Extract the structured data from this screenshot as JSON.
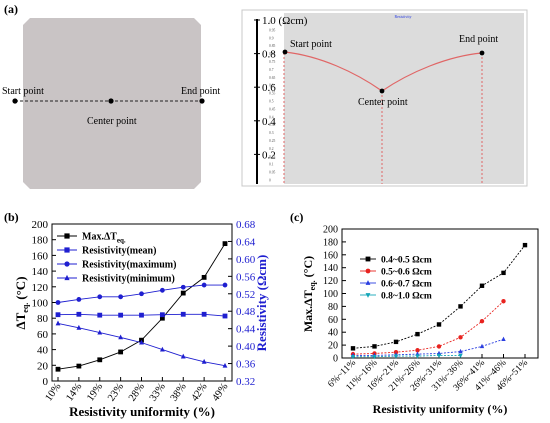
{
  "panel_a": {
    "label": "(a)",
    "left": {
      "start_label": "Start point",
      "center_label": "Center point",
      "end_label": "End point"
    },
    "right": {
      "header": "Resistivity",
      "y_ticks": [
        "1.0 (Ωcm)",
        "0.8",
        "0.6",
        "0.4",
        "0.2"
      ],
      "small_ticks": [
        "1",
        "0.95",
        "0.9",
        "0.85",
        "0.8",
        "0.75",
        "0.7",
        "0.65",
        "0.6",
        "0.55",
        "0.5",
        "0.45",
        "0.4",
        "0.35",
        "0.3",
        "0.25",
        "0.2",
        "0.15",
        "0.1",
        "0.05",
        "0"
      ],
      "start_label": "Start point",
      "center_label": "Center point",
      "end_label": "End point"
    }
  },
  "chart_data": [
    {
      "panel": "(b)",
      "type": "line",
      "categories": [
        "10%",
        "14%",
        "19%",
        "23%",
        "28%",
        "33%",
        "38%",
        "42%",
        "49%"
      ],
      "xlabel": "Resistivity uniformity (%)",
      "ylabel_left": "ΔT",
      "ylabel_left_sub": "eq.",
      "ylabel_left_unit": "(°C)",
      "ylabel_right": "Resistivity (Ωcm)",
      "ylim_left": [
        0,
        200
      ],
      "ylim_right": [
        0.32,
        0.68
      ],
      "yticks_left": [
        "0",
        "20",
        "40",
        "60",
        "80",
        "100",
        "120",
        "140",
        "160",
        "180",
        "200"
      ],
      "yticks_right": [
        "0.32",
        "0.36",
        "0.40",
        "0.44",
        "0.48",
        "0.52",
        "0.56",
        "0.60",
        "0.64",
        "0.68"
      ],
      "legend_position": "top-left",
      "series": [
        {
          "name": "Max.ΔT",
          "name_sub": "eq.",
          "axis": "left",
          "marker": "square",
          "color": "#000000",
          "values": [
            15,
            19,
            27,
            37,
            52,
            80,
            112,
            132,
            175
          ]
        },
        {
          "name": "Resistivity(mean)",
          "axis": "right",
          "marker": "square",
          "color": "#1f1fd0",
          "values": [
            0.472,
            0.473,
            0.471,
            0.471,
            0.471,
            0.472,
            0.473,
            0.473,
            0.469
          ]
        },
        {
          "name": "Resistivity(maximum)",
          "axis": "right",
          "marker": "circle",
          "color": "#1f1fd0",
          "values": [
            0.5,
            0.507,
            0.513,
            0.513,
            0.52,
            0.528,
            0.535,
            0.54,
            0.54
          ]
        },
        {
          "name": "Resistivity(minimum)",
          "axis": "right",
          "marker": "triangle",
          "color": "#1f1fd0",
          "values": [
            0.452,
            0.442,
            0.431,
            0.42,
            0.408,
            0.392,
            0.376,
            0.364,
            0.355
          ]
        }
      ]
    },
    {
      "panel": "(c)",
      "type": "line",
      "categories": [
        "6%~11%",
        "11%~16%",
        "16%~21%",
        "21%~26%",
        "26%~31%",
        "31%~36%",
        "36%~41%",
        "41%~46%",
        "46%~51%"
      ],
      "xlabel": "Resistivity uniformity (%)",
      "ylabel": "Max.ΔT",
      "ylabel_sub": "eq.",
      "ylabel_unit": "(°C)",
      "ylim": [
        0,
        200
      ],
      "yticks": [
        "0",
        "20",
        "40",
        "60",
        "80",
        "100",
        "120",
        "140",
        "160",
        "180",
        "200"
      ],
      "legend_position": "top-left",
      "series": [
        {
          "name": "0.4~0.5 Ωcm",
          "marker": "square",
          "color": "#000000",
          "values": [
            15,
            18,
            25,
            37,
            52,
            80,
            112,
            132,
            175
          ]
        },
        {
          "name": "0.5~0.6 Ωcm",
          "marker": "circle",
          "color": "#e8231f",
          "values": [
            6,
            7,
            9,
            12,
            18,
            32,
            57,
            88,
            null
          ]
        },
        {
          "name": "0.6~0.7 Ωcm",
          "marker": "triangle",
          "color": "#2a3ee0",
          "values": [
            4,
            4,
            5,
            6,
            7,
            10,
            18,
            29,
            null
          ]
        },
        {
          "name": "0.8~1.0 Ωcm",
          "marker": "triangle-down",
          "color": "#14a6b8",
          "values": [
            2,
            2,
            3,
            3,
            4,
            4,
            null,
            null,
            null
          ]
        }
      ]
    }
  ]
}
